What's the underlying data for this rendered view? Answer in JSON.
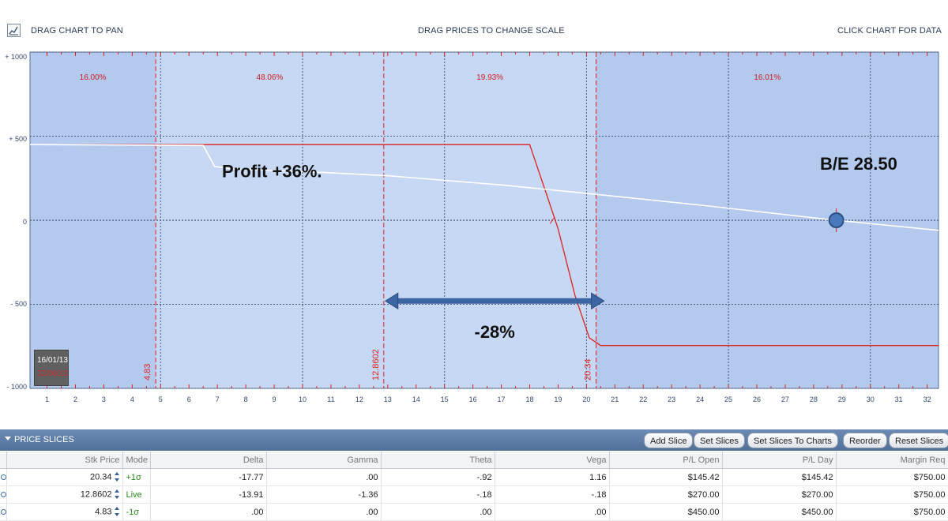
{
  "toolbar": {
    "drag_pan": "DRAG CHART TO PAN",
    "drag_scale": "DRAG PRICES TO CHANGE SCALE",
    "click_data": "CLICK CHART FOR DATA"
  },
  "chart_data": {
    "type": "line",
    "x_ticks": [
      "1",
      "2",
      "3",
      "4",
      "5",
      "6",
      "7",
      "8",
      "9",
      "10",
      "11",
      "12",
      "13",
      "14",
      "15",
      "16",
      "17",
      "18",
      "19",
      "20",
      "21",
      "22",
      "23",
      "24",
      "25",
      "26",
      "27",
      "28",
      "29",
      "30",
      "31",
      "32"
    ],
    "y_ticks": [
      "+ 1000",
      "+ 500",
      "0",
      "- 500",
      "- 1000"
    ],
    "xlim": [
      0.4,
      32.4
    ],
    "ylim": [
      -1000,
      1000
    ],
    "vertical_lines": [
      {
        "x": 4.83,
        "label": "4.83"
      },
      {
        "x": 12.8602,
        "label": "12.8602"
      },
      {
        "x": 20.34,
        "label": "20.34"
      }
    ],
    "zone_percents": [
      "16.00%",
      "48.06%",
      "19.93%",
      "16.01%"
    ],
    "series": [
      {
        "color": "#e02020",
        "points": [
          [
            0.4,
            450
          ],
          [
            18.0,
            450
          ],
          [
            18.6,
            150
          ],
          [
            19.0,
            -50
          ],
          [
            19.6,
            -450
          ],
          [
            20.1,
            -700
          ],
          [
            20.5,
            -745
          ],
          [
            32.4,
            -745
          ]
        ]
      },
      {
        "color": "#ffffff",
        "points": [
          [
            0.4,
            450
          ],
          [
            6.5,
            445
          ],
          [
            6.9,
            320
          ],
          [
            7.5,
            305
          ],
          [
            10,
            290
          ],
          [
            13,
            265
          ],
          [
            17,
            210
          ],
          [
            20,
            160
          ],
          [
            24,
            90
          ],
          [
            28.5,
            5
          ],
          [
            32.4,
            -60
          ]
        ]
      }
    ],
    "annotations": {
      "profit": "Profit +36%.",
      "breakeven": "B/E 28.50",
      "range": "-28%"
    }
  },
  "date_box": {
    "date1": "16/01/13",
    "date2": "22/06/13"
  },
  "panel": {
    "title": "PRICE SLICES",
    "buttons": [
      "Add Slice",
      "Set Slices",
      "Set Slices To Charts",
      "Reorder",
      "Reset Slices"
    ]
  },
  "table": {
    "headers": [
      "Stk Price",
      "Mode",
      "Delta",
      "Gamma",
      "Theta",
      "Vega",
      "P/L Open",
      "P/L Day",
      "Margin Req"
    ],
    "rows": [
      {
        "stk": "20.34",
        "mode": "+1σ",
        "delta": "-17.77",
        "gamma": ".00",
        "theta": "-.92",
        "vega": "1.16",
        "pl_open": "$145.42",
        "pl_day": "$145.42",
        "margin": "$750.00"
      },
      {
        "stk": "12.8602",
        "mode": "Live",
        "delta": "-13.91",
        "gamma": "-1.36",
        "theta": "-.18",
        "vega": "-.18",
        "pl_open": "$270.00",
        "pl_day": "$270.00",
        "margin": "$750.00"
      },
      {
        "stk": "4.83",
        "mode": "-1σ",
        "delta": ".00",
        "gamma": ".00",
        "theta": ".00",
        "vega": ".00",
        "pl_open": "$450.00",
        "pl_day": "$450.00",
        "margin": "$750.00"
      }
    ]
  },
  "colors": {
    "accent_red": "#e02020",
    "panel_blue": "#5a7aa6",
    "plot_bg": "#b3c9ee"
  }
}
